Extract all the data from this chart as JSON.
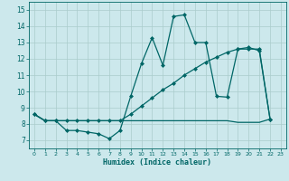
{
  "xlabel": "Humidex (Indice chaleur)",
  "bg_color": "#cce8ec",
  "grid_color": "#aacccc",
  "line_color": "#006666",
  "xlim": [
    -0.5,
    23.5
  ],
  "ylim": [
    6.5,
    15.5
  ],
  "yticks": [
    7,
    8,
    9,
    10,
    11,
    12,
    13,
    14,
    15
  ],
  "xtick_labels": [
    "0",
    "1",
    "2",
    "3",
    "4",
    "5",
    "6",
    "7",
    "8",
    "9",
    "10",
    "11",
    "12",
    "13",
    "14",
    "15",
    "16",
    "17",
    "18",
    "19",
    "20",
    "21",
    "22",
    "23"
  ],
  "lines": [
    {
      "x": [
        0,
        1,
        2,
        3,
        4,
        5,
        6,
        7,
        8,
        9,
        10,
        11,
        12,
        13,
        14,
        15,
        16,
        17,
        18,
        19,
        20,
        21,
        22
      ],
      "y": [
        8.6,
        8.2,
        8.2,
        8.2,
        8.2,
        8.2,
        8.2,
        8.2,
        8.2,
        8.2,
        8.2,
        8.2,
        8.2,
        8.2,
        8.2,
        8.2,
        8.2,
        8.2,
        8.2,
        8.1,
        8.1,
        8.1,
        8.3
      ],
      "linestyle": "-",
      "marker": null,
      "linewidth": 0.9
    },
    {
      "x": [
        0,
        1,
        2,
        3,
        4,
        5,
        6,
        7,
        8,
        9,
        10,
        11,
        12,
        13,
        14,
        15,
        16,
        17,
        18,
        19,
        20,
        21,
        22
      ],
      "y": [
        8.6,
        8.2,
        8.2,
        8.2,
        8.2,
        8.2,
        8.2,
        8.2,
        8.2,
        8.6,
        9.1,
        9.6,
        10.1,
        10.5,
        11.0,
        11.4,
        11.8,
        12.1,
        12.4,
        12.6,
        12.6,
        12.6,
        8.3
      ],
      "linestyle": "-",
      "marker": "D",
      "markersize": 2.0,
      "linewidth": 0.9
    },
    {
      "x": [
        0,
        1,
        2,
        3,
        4,
        5,
        6,
        7,
        8,
        9,
        10,
        11,
        12,
        13,
        14,
        15,
        16,
        17,
        18,
        19,
        20,
        21,
        22
      ],
      "y": [
        8.6,
        8.2,
        8.2,
        7.6,
        7.6,
        7.5,
        7.4,
        7.1,
        7.6,
        9.7,
        11.7,
        13.3,
        11.6,
        14.6,
        14.7,
        13.0,
        13.0,
        9.7,
        9.65,
        12.6,
        12.7,
        12.5,
        8.3
      ],
      "linestyle": "-",
      "marker": "D",
      "markersize": 2.0,
      "linewidth": 0.9
    }
  ]
}
